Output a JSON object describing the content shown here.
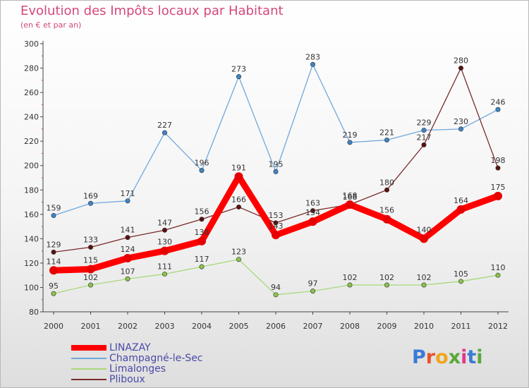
{
  "title": "Evolution des Impôts locaux par Habitant",
  "subtitle": "(en € et par an)",
  "logo": {
    "text": "Proxiti",
    "letter_colors": [
      "#3a7bd5",
      "#e8532a",
      "#f2a51e",
      "#5aa83a",
      "#e03a8a",
      "#3a7bd5",
      "#5aa83a"
    ]
  },
  "chart_data": {
    "type": "line",
    "title": "Evolution des Impôts locaux par Habitant",
    "subtitle": "(en € et par an)",
    "xlabel": "",
    "ylabel": "",
    "ylim": [
      80,
      300
    ],
    "yticks": [
      80,
      100,
      120,
      140,
      160,
      180,
      200,
      220,
      240,
      260,
      280,
      300
    ],
    "x": [
      2000,
      2001,
      2002,
      2003,
      2004,
      2005,
      2006,
      2007,
      2008,
      2009,
      2010,
      2011,
      2012
    ],
    "grid": false,
    "legend_position": "bottom-left",
    "series": [
      {
        "name": "LINAZAY",
        "color": "#ff0000",
        "marker": "#e60000",
        "values": [
          114,
          115,
          124,
          130,
          138,
          191,
          143,
          154,
          168,
          156,
          140,
          164,
          175
        ],
        "labels": [
          "114",
          "115",
          "124",
          "130",
          "138",
          "191",
          "143",
          "154",
          "168",
          "156",
          "140",
          "164",
          "175"
        ]
      },
      {
        "name": "Champagné-le-Sec",
        "color": "#6fa8dc",
        "marker": "#3d85c6",
        "values": [
          159,
          169,
          171,
          227,
          196,
          273,
          195,
          283,
          219,
          221,
          229,
          230,
          246
        ],
        "labels": [
          "159",
          "169",
          "171",
          "227",
          "196",
          "273",
          "195",
          "283",
          "219",
          "221",
          "229",
          "230",
          "246"
        ]
      },
      {
        "name": "Limalonges",
        "color": "#a8d878",
        "marker": "#8bc34a",
        "values": [
          95,
          102,
          107,
          111,
          117,
          123,
          94,
          97,
          102,
          102,
          102,
          105,
          110
        ],
        "labels": [
          "95",
          "102",
          "107",
          "111",
          "117",
          "123",
          "94",
          "97",
          "102",
          "102",
          "102",
          "105",
          "110"
        ]
      },
      {
        "name": "Pliboux",
        "color": "#7a2a2a",
        "marker": "#5c1010",
        "values": [
          129,
          133,
          141,
          147,
          156,
          166,
          153,
          163,
          168,
          180,
          217,
          280,
          198
        ],
        "labels": [
          "129",
          "133",
          "141",
          "147",
          "156",
          "166",
          "153",
          "163",
          "168",
          "180",
          "217",
          "280",
          "198"
        ]
      }
    ]
  }
}
